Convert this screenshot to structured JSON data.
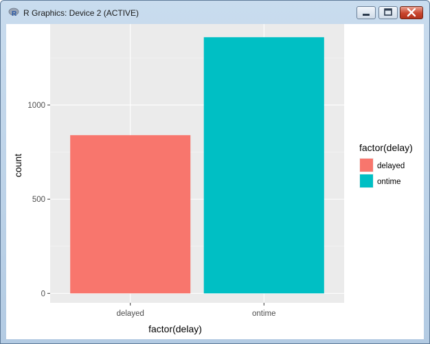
{
  "window": {
    "title": "R Graphics: Device 2 (ACTIVE)",
    "app_icon": "R",
    "controls": [
      "minimize-icon",
      "maximize-icon",
      "close-icon"
    ]
  },
  "chart_data": {
    "type": "bar",
    "categories": [
      "delayed",
      "ontime"
    ],
    "values": [
      840,
      1360
    ],
    "colors": [
      "#F8766D",
      "#00BFC4"
    ],
    "xlabel": "factor(delay)",
    "ylabel": "count",
    "yticks": [
      0,
      500,
      1000
    ],
    "ylim": [
      -50,
      1430
    ],
    "grid": true,
    "panel_background": "#EBEBEB",
    "legend": {
      "title": "factor(delay)",
      "placement": "right",
      "items": [
        "delayed",
        "ontime"
      ]
    }
  }
}
